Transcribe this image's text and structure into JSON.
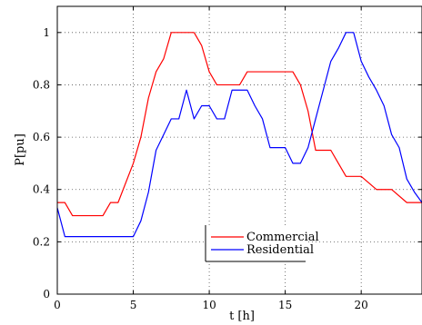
{
  "chart_data": {
    "type": "line",
    "xlabel": "t [h]",
    "ylabel": "P[pu]",
    "xlim": [
      0,
      24
    ],
    "ylim": [
      0,
      1.1
    ],
    "xticks": [
      "0",
      "5",
      "10",
      "15",
      "20"
    ],
    "yticks": [
      "0",
      "0.2",
      "0.4",
      "0.6",
      "0.8",
      "1"
    ],
    "grid": true,
    "legend_position": "lower-center",
    "series": [
      {
        "name": "Commercial",
        "color": "#ff0000",
        "x": [
          0,
          0.5,
          1,
          2,
          3,
          3.5,
          4,
          5,
          5.5,
          6,
          6.5,
          7,
          7.5,
          8,
          9,
          9.5,
          10,
          10.5,
          11,
          12,
          12.5,
          13,
          14,
          15,
          15.5,
          16,
          16.5,
          17,
          18,
          18.5,
          19,
          19.5,
          20,
          21,
          22,
          23,
          24
        ],
        "y": [
          0.35,
          0.35,
          0.3,
          0.3,
          0.3,
          0.35,
          0.35,
          0.5,
          0.6,
          0.75,
          0.85,
          0.9,
          1.0,
          1.0,
          1.0,
          0.95,
          0.85,
          0.8,
          0.8,
          0.8,
          0.85,
          0.85,
          0.85,
          0.85,
          0.85,
          0.8,
          0.7,
          0.55,
          0.55,
          0.5,
          0.45,
          0.45,
          0.45,
          0.4,
          0.4,
          0.35,
          0.35
        ]
      },
      {
        "name": "Residential",
        "color": "#0000ff",
        "x": [
          0,
          0.5,
          1,
          2,
          3,
          4,
          5,
          5.5,
          6,
          6.5,
          7,
          7.5,
          8,
          8.5,
          9,
          9.5,
          10,
          10.5,
          11,
          11.5,
          12,
          12.5,
          13,
          13.5,
          14,
          15,
          15.5,
          16,
          16.5,
          17,
          17.5,
          18,
          18.5,
          19,
          19.5,
          20,
          20.5,
          21,
          21.5,
          22,
          22.5,
          23,
          23.5,
          24
        ],
        "y": [
          0.33,
          0.22,
          0.22,
          0.22,
          0.22,
          0.22,
          0.22,
          0.28,
          0.39,
          0.55,
          0.61,
          0.67,
          0.67,
          0.78,
          0.67,
          0.72,
          0.72,
          0.67,
          0.67,
          0.78,
          0.78,
          0.78,
          0.72,
          0.67,
          0.56,
          0.56,
          0.5,
          0.5,
          0.56,
          0.67,
          0.78,
          0.89,
          0.94,
          1.0,
          1.0,
          0.89,
          0.83,
          0.78,
          0.72,
          0.61,
          0.56,
          0.44,
          0.39,
          0.35
        ]
      }
    ]
  }
}
